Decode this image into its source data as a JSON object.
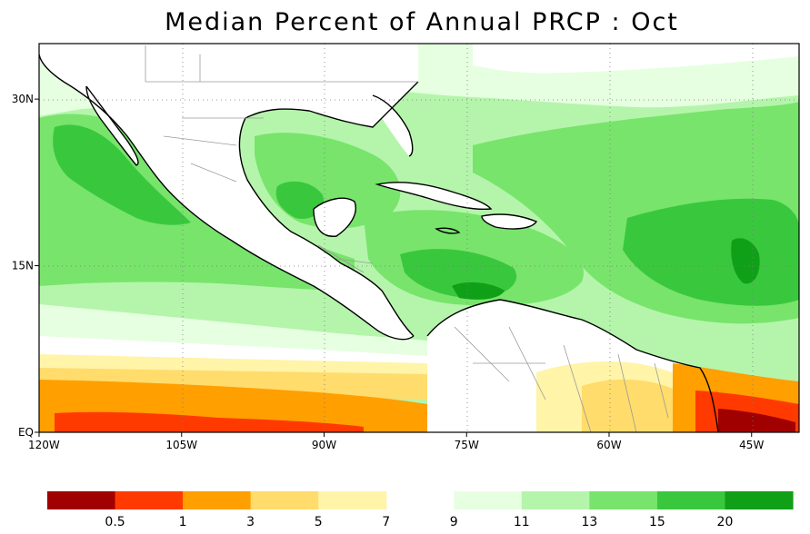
{
  "title": "Median Percent of Annual PRCP :   Oct",
  "axes": {
    "lat_ticks": [
      {
        "value": 30,
        "label": "30N"
      },
      {
        "value": 15,
        "label": "15N"
      },
      {
        "value": 0,
        "label": "EQ"
      }
    ],
    "lon_ticks": [
      {
        "value": -120,
        "label": "120W"
      },
      {
        "value": -105,
        "label": "105W"
      },
      {
        "value": -90,
        "label": "90W"
      },
      {
        "value": -75,
        "label": "75W"
      },
      {
        "value": -60,
        "label": "60W"
      },
      {
        "value": -45,
        "label": "45W"
      }
    ],
    "lon_range": [
      -120,
      -40
    ],
    "lat_range": [
      0,
      35
    ],
    "grid": "dotted"
  },
  "colorbar": {
    "labels": [
      "0.5",
      "1",
      "3",
      "5",
      "7",
      "9",
      "11",
      "13",
      "15",
      "20"
    ],
    "bins": [
      {
        "color": "#a00000"
      },
      {
        "color": "#ff3a00"
      },
      {
        "color": "#ff9f00"
      },
      {
        "color": "#ffdc6b"
      },
      {
        "color": "#fff4a8"
      },
      {
        "color": "gap"
      },
      {
        "color": "#e6ffe0"
      },
      {
        "color": "#b4f5ab"
      },
      {
        "color": "#78e46c"
      },
      {
        "color": "#39c83d"
      },
      {
        "color": "#10a018"
      }
    ]
  },
  "colors": {
    "ocean_default": "#b4f5ab",
    "land": "#ffffff",
    "frame": "#000000"
  }
}
